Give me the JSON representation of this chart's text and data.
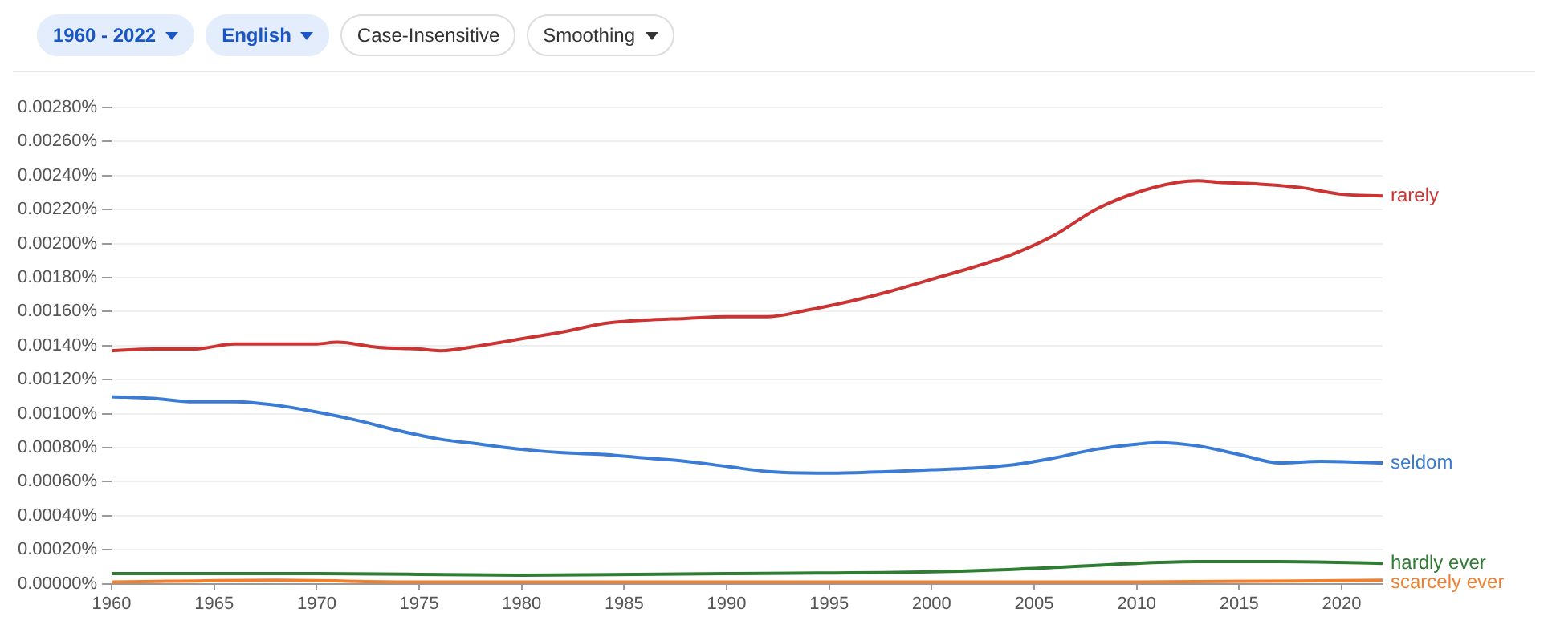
{
  "chart_data": {
    "type": "line",
    "annotations": [
      "1960 - 2022",
      "English",
      "Case-Insensitive",
      "Smoothing"
    ],
    "xlim": [
      1960,
      2022
    ],
    "xticks": [
      1960,
      1965,
      1970,
      1975,
      1980,
      1985,
      1990,
      1995,
      2000,
      2005,
      2010,
      2015,
      2020
    ],
    "ylim": [
      0,
      0.0028
    ],
    "yticks": [
      {
        "value": 0,
        "label": "0.00000%"
      },
      {
        "value": 0.0002,
        "label": "0.00020%"
      },
      {
        "value": 0.0004,
        "label": "0.00040%"
      },
      {
        "value": 0.0006,
        "label": "0.00060%"
      },
      {
        "value": 0.0008,
        "label": "0.00080%"
      },
      {
        "value": 0.001,
        "label": "0.00100%"
      },
      {
        "value": 0.0012,
        "label": "0.00120%"
      },
      {
        "value": 0.0014,
        "label": "0.00140%"
      },
      {
        "value": 0.0016,
        "label": "0.00160%"
      },
      {
        "value": 0.0018,
        "label": "0.00180%"
      },
      {
        "value": 0.002,
        "label": "0.00200%"
      },
      {
        "value": 0.0022,
        "label": "0.00220%"
      },
      {
        "value": 0.0024,
        "label": "0.00240%"
      },
      {
        "value": 0.0026,
        "label": "0.00260%"
      },
      {
        "value": 0.0028,
        "label": "0.00280%"
      }
    ],
    "grid": "y",
    "legend": false,
    "marker": "none",
    "line_style": "solid",
    "series": [
      {
        "name": "rarely",
        "color": "#cc3333",
        "x": [
          1960,
          1962,
          1964,
          1966,
          1968,
          1970,
          1971,
          1973,
          1975,
          1976,
          1978,
          1980,
          1982,
          1984,
          1986,
          1988,
          1990,
          1992,
          1994,
          1996,
          1998,
          2000,
          2002,
          2004,
          2006,
          2008,
          2010,
          2012,
          2013,
          2014,
          2016,
          2018,
          2020,
          2022
        ],
        "values": [
          0.00137,
          0.00138,
          0.00138,
          0.00141,
          0.00141,
          0.00141,
          0.00142,
          0.00139,
          0.00138,
          0.00137,
          0.0014,
          0.00144,
          0.00148,
          0.00153,
          0.00155,
          0.00156,
          0.00157,
          0.00157,
          0.00161,
          0.00166,
          0.00172,
          0.00179,
          0.00186,
          0.00194,
          0.00205,
          0.0022,
          0.0023,
          0.00236,
          0.00237,
          0.00236,
          0.00235,
          0.00233,
          0.00229,
          0.00228
        ]
      },
      {
        "name": "seldom",
        "color": "#3a7bd5",
        "x": [
          1960,
          1962,
          1964,
          1966,
          1968,
          1970,
          1972,
          1974,
          1976,
          1978,
          1980,
          1982,
          1984,
          1986,
          1988,
          1990,
          1992,
          1995,
          1998,
          2000,
          2002,
          2004,
          2006,
          2008,
          2010,
          2011,
          2013,
          2015,
          2017,
          2019,
          2022
        ],
        "values": [
          0.0011,
          0.00109,
          0.00107,
          0.00107,
          0.00105,
          0.00101,
          0.00096,
          0.0009,
          0.00085,
          0.00082,
          0.00079,
          0.00077,
          0.00076,
          0.00074,
          0.00072,
          0.00069,
          0.00066,
          0.00065,
          0.00066,
          0.00067,
          0.00068,
          0.0007,
          0.00074,
          0.00079,
          0.00082,
          0.00083,
          0.00081,
          0.00076,
          0.00071,
          0.00072,
          0.00071
        ]
      },
      {
        "name": "hardly ever",
        "color": "#2e7d32",
        "x": [
          1960,
          1970,
          1980,
          1990,
          2000,
          2005,
          2010,
          2013,
          2017,
          2022
        ],
        "values": [
          6e-05,
          6e-05,
          5e-05,
          6e-05,
          7e-05,
          9e-05,
          0.00012,
          0.00013,
          0.00013,
          0.00012
        ]
      },
      {
        "name": "scarcely ever",
        "color": "#f08030",
        "x": [
          1960,
          1968,
          1975,
          1990,
          2010,
          2022
        ],
        "values": [
          1e-05,
          2e-05,
          1e-05,
          1e-05,
          1e-05,
          2e-05
        ]
      }
    ]
  }
}
